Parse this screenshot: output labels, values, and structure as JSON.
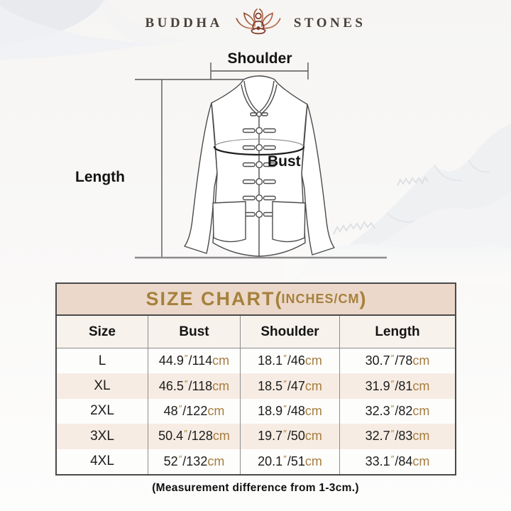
{
  "brand": {
    "name_left": "BUDDHA",
    "name_right": "STONES",
    "icon": "lotus-meditation-icon"
  },
  "diagram": {
    "shoulder_label": "Shoulder",
    "length_label": "Length",
    "bust_label": "Bust"
  },
  "size_chart": {
    "title_main": "SIZE CHART",
    "title_paren_open": "(",
    "title_units": "INCHES/CM",
    "title_paren_close": ")",
    "columns": [
      "Size",
      "Bust",
      "Shoulder",
      "Length"
    ],
    "units": {
      "inch_mark": "″",
      "slash": "/",
      "cm_label": "cm"
    },
    "rows": [
      {
        "size": "L",
        "bust": [
          "44.9",
          "114"
        ],
        "shoulder": [
          "18.1",
          "46"
        ],
        "length": [
          "30.7",
          "78"
        ]
      },
      {
        "size": "XL",
        "bust": [
          "46.5",
          "118"
        ],
        "shoulder": [
          "18.5",
          "47"
        ],
        "length": [
          "31.9",
          "81"
        ]
      },
      {
        "size": "2XL",
        "bust": [
          "48",
          "122"
        ],
        "shoulder": [
          "18.9",
          "48"
        ],
        "length": [
          "32.3",
          "82"
        ]
      },
      {
        "size": "3XL",
        "bust": [
          "50.4",
          "128"
        ],
        "shoulder": [
          "19.7",
          "50"
        ],
        "length": [
          "32.7",
          "83"
        ]
      },
      {
        "size": "4XL",
        "bust": [
          "52",
          "132"
        ],
        "shoulder": [
          "20.1",
          "51"
        ],
        "length": [
          "33.1",
          "84"
        ]
      }
    ],
    "note": "(Measurement difference from 1-3cm.)"
  },
  "chart_data": {
    "type": "table",
    "title": "SIZE CHART(INCHES/CM)",
    "columns": [
      "Size",
      "Bust",
      "Shoulder",
      "Length"
    ],
    "rows": [
      [
        "L",
        "44.9″/114cm",
        "18.1″/46cm",
        "30.7″/78cm"
      ],
      [
        "XL",
        "46.5″/118cm",
        "18.5″/47cm",
        "31.9″/81cm"
      ],
      [
        "2XL",
        "48″/122cm",
        "18.9″/48cm",
        "32.3″/82cm"
      ],
      [
        "3XL",
        "50.4″/128cm",
        "19.7″/50cm",
        "32.7″/83cm"
      ],
      [
        "4XL",
        "52″/132cm",
        "20.1″/51cm",
        "33.1″/84cm"
      ]
    ],
    "note": "(Measurement difference from 1-3cm.)"
  },
  "colors": {
    "title_bg": "#ecd8ca",
    "title_text": "#a5813c",
    "accent_gold": "#a57e40",
    "alt_row_bg": "#f7ece3",
    "header_row_bg": "#f7f2ec",
    "table_border": "#4a4a48",
    "logo_red": "#8d4a33"
  }
}
